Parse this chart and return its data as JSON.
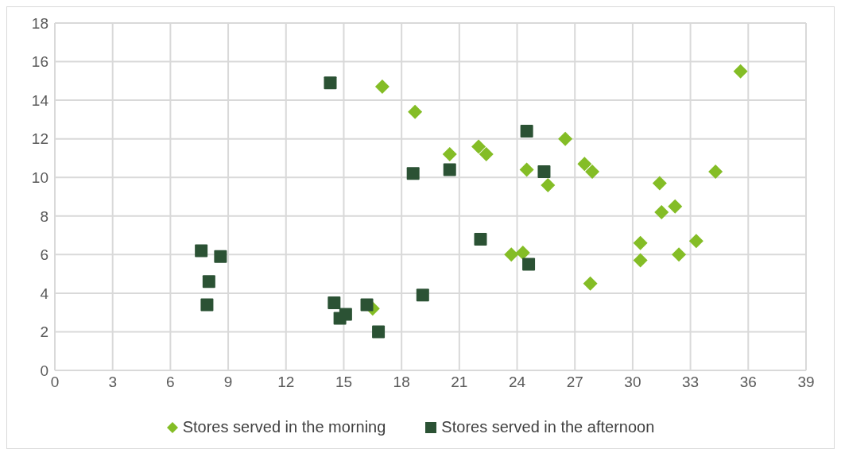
{
  "chart_data": {
    "type": "scatter",
    "xlim": [
      0,
      39
    ],
    "xticks": [
      0,
      3,
      6,
      9,
      12,
      15,
      18,
      21,
      24,
      27,
      30,
      33,
      36,
      39
    ],
    "ylim": [
      0,
      18
    ],
    "yticks": [
      0,
      2,
      4,
      6,
      8,
      10,
      12,
      14,
      16,
      18
    ],
    "grid": true,
    "legend": "bottom",
    "series": [
      {
        "name": "Stores served in the morning",
        "color": "#84bd26",
        "marker": "diamond",
        "x": [
          17,
          18.7,
          20.5,
          22,
          22.4,
          24.5,
          25.6,
          26.5,
          27.5,
          27.9,
          31.4,
          31.5,
          32.2,
          34.3,
          35.6,
          30.4,
          30.4,
          33.3,
          32.4,
          23.7,
          24.3,
          27.8,
          16.5
        ],
        "values": [
          14.7,
          13.4,
          11.2,
          11.6,
          11.2,
          10.4,
          9.6,
          12,
          10.7,
          10.3,
          9.7,
          8.2,
          8.5,
          10.3,
          15.5,
          6.6,
          5.7,
          6.7,
          6,
          6,
          6.1,
          4.5,
          3.2
        ]
      },
      {
        "name": "Stores served in the afternoon",
        "color": "#2b5234",
        "marker": "square",
        "x": [
          14.3,
          18.6,
          20.5,
          24.5,
          25.4,
          22.1,
          24.6,
          19.1,
          7.6,
          8.6,
          8,
          7.9,
          14.5,
          14.8,
          15.1,
          16.2,
          16.8
        ],
        "values": [
          14.9,
          10.2,
          10.4,
          12.4,
          10.3,
          6.8,
          5.5,
          3.9,
          6.2,
          5.9,
          4.6,
          3.4,
          3.5,
          2.7,
          2.9,
          3.4,
          2
        ]
      }
    ]
  }
}
